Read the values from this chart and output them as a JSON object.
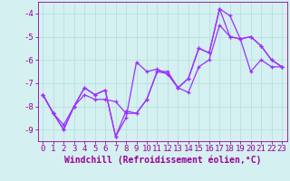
{
  "xlabel": "Windchill (Refroidissement éolien,°C)",
  "x_values": [
    0,
    1,
    2,
    3,
    4,
    5,
    6,
    7,
    8,
    9,
    10,
    11,
    12,
    13,
    14,
    15,
    16,
    17,
    18,
    19,
    20,
    21,
    22,
    23
  ],
  "line1": [
    -7.5,
    -8.3,
    -9.0,
    -8.0,
    -7.2,
    -7.5,
    -7.3,
    -9.3,
    -8.5,
    -6.1,
    -6.5,
    -6.4,
    -6.6,
    -7.2,
    -6.8,
    -5.5,
    -5.7,
    -3.8,
    -4.1,
    -5.1,
    -5.0,
    -5.4,
    -6.0,
    -6.3
  ],
  "line2": [
    -7.5,
    -8.3,
    -9.0,
    -8.0,
    -7.2,
    -7.5,
    -7.3,
    -9.3,
    -8.2,
    -8.3,
    -7.7,
    -6.5,
    -6.6,
    -7.2,
    -6.8,
    -5.5,
    -5.7,
    -3.8,
    -5.0,
    -5.1,
    -5.0,
    -5.4,
    -6.0,
    -6.3
  ],
  "line3": [
    -7.5,
    -8.3,
    -8.8,
    -8.0,
    -7.5,
    -7.7,
    -7.7,
    -7.8,
    -8.3,
    -8.3,
    -7.7,
    -6.5,
    -6.5,
    -7.2,
    -7.4,
    -6.3,
    -6.0,
    -4.5,
    -5.0,
    -5.1,
    -6.5,
    -6.0,
    -6.3,
    -6.3
  ],
  "line_color": "#9B30FF",
  "background_color": "#d4f0f0",
  "grid_color": "#b8e0e0",
  "ylim": [
    -9.5,
    -3.5
  ],
  "xlim": [
    -0.5,
    23.5
  ],
  "yticks": [
    -9,
    -8,
    -7,
    -6,
    -5,
    -4
  ],
  "xticks": [
    0,
    1,
    2,
    3,
    4,
    5,
    6,
    7,
    8,
    9,
    10,
    11,
    12,
    13,
    14,
    15,
    16,
    17,
    18,
    19,
    20,
    21,
    22,
    23
  ],
  "tick_color": "#990099",
  "axis_color": "#990099",
  "tick_fontsize": 6.5,
  "xlabel_fontsize": 7,
  "marker_size": 3.5,
  "linewidth": 0.9
}
